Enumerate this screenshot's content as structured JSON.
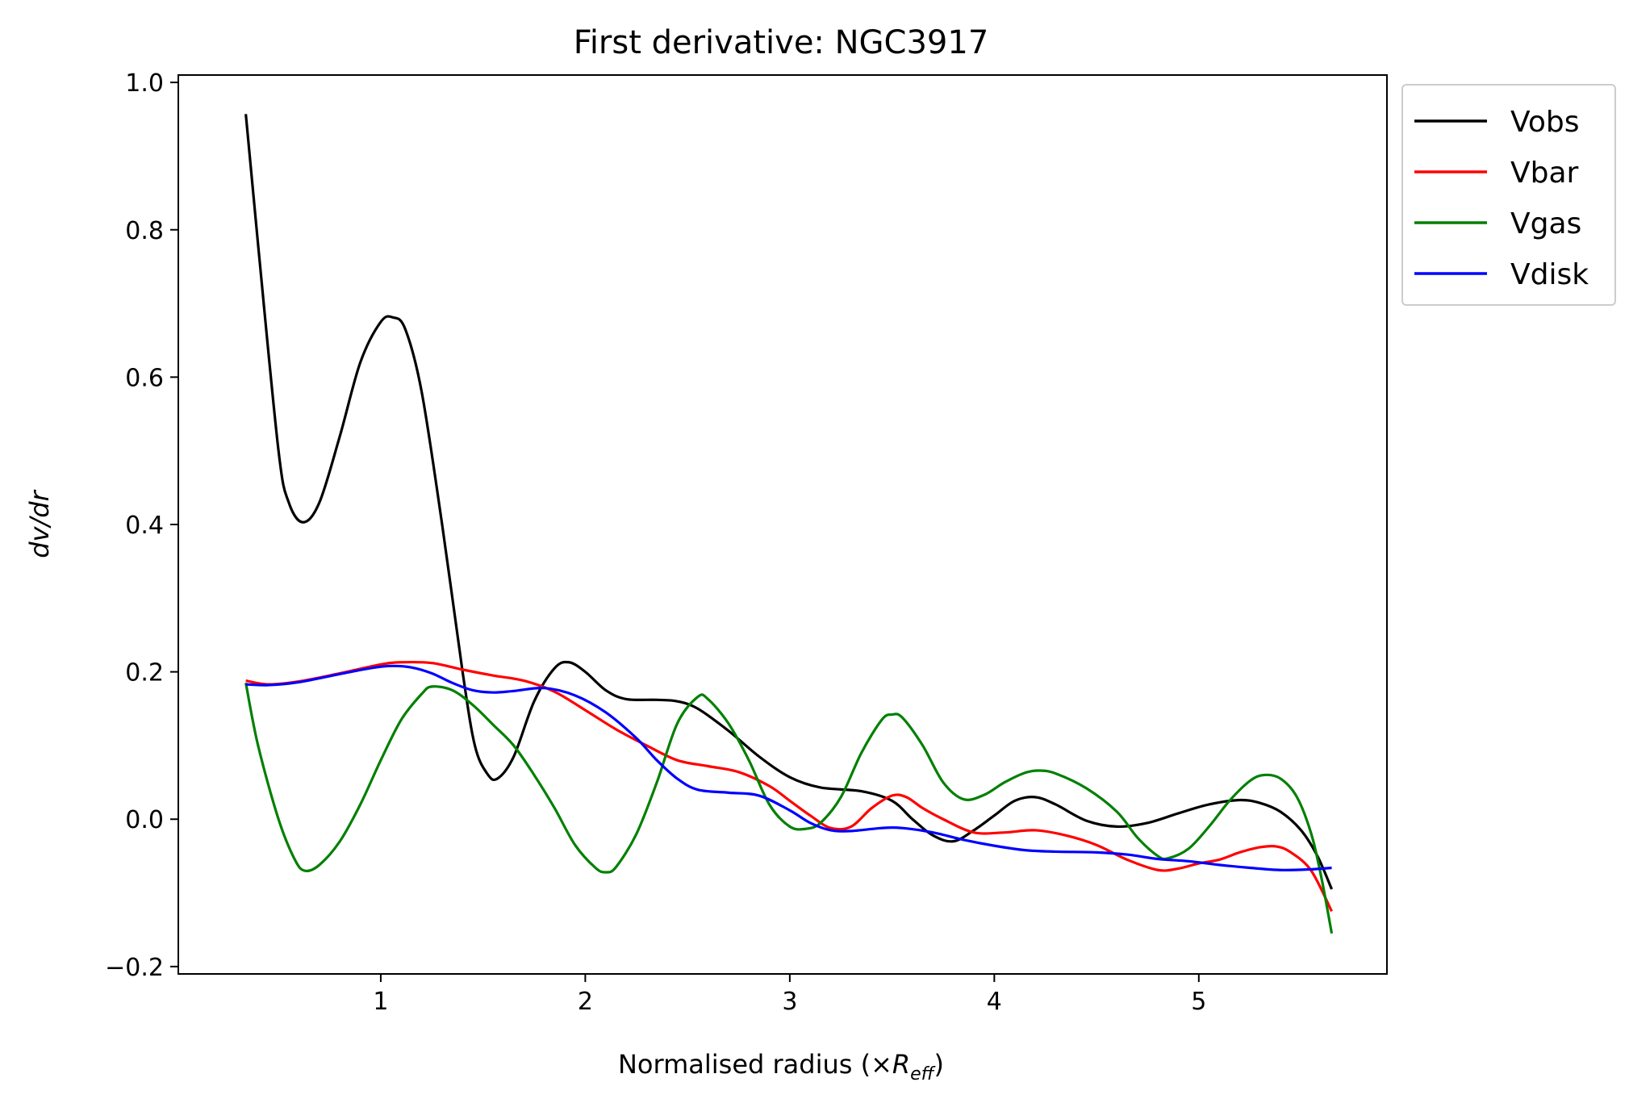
{
  "chart_data": {
    "type": "line",
    "title": "First derivative: NGC3917",
    "xlabel": {
      "prefix": "Normalised radius (×",
      "symbol": "R",
      "subscript": "eff",
      "suffix": ")"
    },
    "ylabel": "dv/dr",
    "xlim": [
      0.01,
      5.92
    ],
    "ylim": [
      -0.21,
      1.01
    ],
    "xticks": [
      1,
      2,
      3,
      4,
      5
    ],
    "yticks": [
      -0.2,
      0.0,
      0.2,
      0.4,
      0.6,
      0.8,
      1.0
    ],
    "xtick_labels": [
      "1",
      "2",
      "3",
      "4",
      "5"
    ],
    "ytick_labels": [
      "−0.2",
      "0.0",
      "0.2",
      "0.4",
      "0.6",
      "0.8",
      "1.0"
    ],
    "grid": false,
    "legend_position": "outside top-right",
    "series": [
      {
        "name": "Vobs",
        "color": "#000000",
        "points": [
          [
            0.34,
            0.957
          ],
          [
            0.4,
            0.78
          ],
          [
            0.5,
            0.5
          ],
          [
            0.55,
            0.43
          ],
          [
            0.62,
            0.403
          ],
          [
            0.7,
            0.43
          ],
          [
            0.8,
            0.52
          ],
          [
            0.9,
            0.62
          ],
          [
            1.0,
            0.675
          ],
          [
            1.06,
            0.681
          ],
          [
            1.12,
            0.665
          ],
          [
            1.2,
            0.58
          ],
          [
            1.3,
            0.4
          ],
          [
            1.4,
            0.2
          ],
          [
            1.46,
            0.1
          ],
          [
            1.52,
            0.062
          ],
          [
            1.57,
            0.055
          ],
          [
            1.65,
            0.085
          ],
          [
            1.75,
            0.16
          ],
          [
            1.85,
            0.205
          ],
          [
            1.92,
            0.213
          ],
          [
            2.0,
            0.2
          ],
          [
            2.1,
            0.175
          ],
          [
            2.2,
            0.163
          ],
          [
            2.35,
            0.162
          ],
          [
            2.45,
            0.16
          ],
          [
            2.55,
            0.15
          ],
          [
            2.7,
            0.12
          ],
          [
            2.85,
            0.085
          ],
          [
            3.0,
            0.057
          ],
          [
            3.15,
            0.043
          ],
          [
            3.35,
            0.038
          ],
          [
            3.5,
            0.025
          ],
          [
            3.6,
            0.0
          ],
          [
            3.7,
            -0.022
          ],
          [
            3.8,
            -0.03
          ],
          [
            3.9,
            -0.015
          ],
          [
            4.0,
            0.005
          ],
          [
            4.1,
            0.025
          ],
          [
            4.2,
            0.03
          ],
          [
            4.3,
            0.02
          ],
          [
            4.45,
            -0.002
          ],
          [
            4.6,
            -0.01
          ],
          [
            4.75,
            -0.005
          ],
          [
            4.9,
            0.008
          ],
          [
            5.05,
            0.02
          ],
          [
            5.2,
            0.026
          ],
          [
            5.3,
            0.022
          ],
          [
            5.4,
            0.01
          ],
          [
            5.5,
            -0.015
          ],
          [
            5.58,
            -0.05
          ],
          [
            5.65,
            -0.095
          ]
        ]
      },
      {
        "name": "Vbar",
        "color": "#ff0000",
        "points": [
          [
            0.34,
            0.188
          ],
          [
            0.45,
            0.183
          ],
          [
            0.6,
            0.187
          ],
          [
            0.8,
            0.198
          ],
          [
            1.0,
            0.21
          ],
          [
            1.1,
            0.213
          ],
          [
            1.25,
            0.212
          ],
          [
            1.4,
            0.203
          ],
          [
            1.55,
            0.195
          ],
          [
            1.7,
            0.188
          ],
          [
            1.85,
            0.173
          ],
          [
            2.0,
            0.148
          ],
          [
            2.15,
            0.122
          ],
          [
            2.3,
            0.1
          ],
          [
            2.45,
            0.08
          ],
          [
            2.6,
            0.072
          ],
          [
            2.75,
            0.064
          ],
          [
            2.9,
            0.045
          ],
          [
            3.0,
            0.025
          ],
          [
            3.1,
            0.005
          ],
          [
            3.2,
            -0.012
          ],
          [
            3.3,
            -0.01
          ],
          [
            3.4,
            0.015
          ],
          [
            3.5,
            0.032
          ],
          [
            3.57,
            0.03
          ],
          [
            3.65,
            0.015
          ],
          [
            3.75,
            0.0
          ],
          [
            3.9,
            -0.018
          ],
          [
            4.05,
            -0.018
          ],
          [
            4.2,
            -0.015
          ],
          [
            4.35,
            -0.022
          ],
          [
            4.5,
            -0.035
          ],
          [
            4.65,
            -0.055
          ],
          [
            4.8,
            -0.069
          ],
          [
            4.9,
            -0.067
          ],
          [
            5.0,
            -0.06
          ],
          [
            5.1,
            -0.055
          ],
          [
            5.2,
            -0.045
          ],
          [
            5.3,
            -0.038
          ],
          [
            5.38,
            -0.037
          ],
          [
            5.45,
            -0.045
          ],
          [
            5.55,
            -0.07
          ],
          [
            5.65,
            -0.125
          ]
        ]
      },
      {
        "name": "Vgas",
        "color": "#008000",
        "points": [
          [
            0.34,
            0.185
          ],
          [
            0.4,
            0.1
          ],
          [
            0.5,
            0.0
          ],
          [
            0.58,
            -0.055
          ],
          [
            0.63,
            -0.07
          ],
          [
            0.7,
            -0.062
          ],
          [
            0.8,
            -0.03
          ],
          [
            0.9,
            0.02
          ],
          [
            1.0,
            0.08
          ],
          [
            1.1,
            0.135
          ],
          [
            1.2,
            0.17
          ],
          [
            1.25,
            0.18
          ],
          [
            1.35,
            0.175
          ],
          [
            1.45,
            0.155
          ],
          [
            1.55,
            0.128
          ],
          [
            1.65,
            0.1
          ],
          [
            1.75,
            0.06
          ],
          [
            1.85,
            0.015
          ],
          [
            1.95,
            -0.035
          ],
          [
            2.05,
            -0.066
          ],
          [
            2.1,
            -0.072
          ],
          [
            2.15,
            -0.065
          ],
          [
            2.25,
            -0.02
          ],
          [
            2.35,
            0.05
          ],
          [
            2.45,
            0.13
          ],
          [
            2.55,
            0.166
          ],
          [
            2.6,
            0.163
          ],
          [
            2.7,
            0.13
          ],
          [
            2.8,
            0.08
          ],
          [
            2.9,
            0.02
          ],
          [
            3.0,
            -0.01
          ],
          [
            3.08,
            -0.013
          ],
          [
            3.15,
            -0.005
          ],
          [
            3.25,
            0.03
          ],
          [
            3.35,
            0.09
          ],
          [
            3.45,
            0.135
          ],
          [
            3.5,
            0.142
          ],
          [
            3.55,
            0.138
          ],
          [
            3.65,
            0.1
          ],
          [
            3.75,
            0.05
          ],
          [
            3.85,
            0.027
          ],
          [
            3.95,
            0.033
          ],
          [
            4.05,
            0.05
          ],
          [
            4.15,
            0.063
          ],
          [
            4.22,
            0.066
          ],
          [
            4.3,
            0.062
          ],
          [
            4.45,
            0.042
          ],
          [
            4.6,
            0.01
          ],
          [
            4.7,
            -0.025
          ],
          [
            4.8,
            -0.05
          ],
          [
            4.85,
            -0.053
          ],
          [
            4.95,
            -0.04
          ],
          [
            5.05,
            -0.01
          ],
          [
            5.15,
            0.025
          ],
          [
            5.25,
            0.052
          ],
          [
            5.32,
            0.06
          ],
          [
            5.4,
            0.055
          ],
          [
            5.48,
            0.03
          ],
          [
            5.55,
            -0.02
          ],
          [
            5.6,
            -0.08
          ],
          [
            5.65,
            -0.155
          ]
        ]
      },
      {
        "name": "Vdisk",
        "color": "#0000ff",
        "points": [
          [
            0.34,
            0.183
          ],
          [
            0.45,
            0.182
          ],
          [
            0.6,
            0.186
          ],
          [
            0.8,
            0.197
          ],
          [
            0.95,
            0.205
          ],
          [
            1.05,
            0.208
          ],
          [
            1.15,
            0.206
          ],
          [
            1.25,
            0.198
          ],
          [
            1.35,
            0.185
          ],
          [
            1.45,
            0.175
          ],
          [
            1.55,
            0.172
          ],
          [
            1.65,
            0.174
          ],
          [
            1.8,
            0.178
          ],
          [
            1.95,
            0.168
          ],
          [
            2.1,
            0.145
          ],
          [
            2.25,
            0.11
          ],
          [
            2.35,
            0.08
          ],
          [
            2.45,
            0.055
          ],
          [
            2.55,
            0.04
          ],
          [
            2.7,
            0.036
          ],
          [
            2.85,
            0.032
          ],
          [
            3.0,
            0.012
          ],
          [
            3.1,
            -0.005
          ],
          [
            3.2,
            -0.015
          ],
          [
            3.3,
            -0.016
          ],
          [
            3.45,
            -0.012
          ],
          [
            3.55,
            -0.012
          ],
          [
            3.7,
            -0.018
          ],
          [
            3.85,
            -0.028
          ],
          [
            4.0,
            -0.036
          ],
          [
            4.15,
            -0.042
          ],
          [
            4.3,
            -0.044
          ],
          [
            4.5,
            -0.045
          ],
          [
            4.65,
            -0.048
          ],
          [
            4.8,
            -0.054
          ],
          [
            4.95,
            -0.057
          ],
          [
            5.1,
            -0.062
          ],
          [
            5.25,
            -0.066
          ],
          [
            5.4,
            -0.069
          ],
          [
            5.55,
            -0.068
          ],
          [
            5.65,
            -0.066
          ]
        ]
      }
    ]
  }
}
